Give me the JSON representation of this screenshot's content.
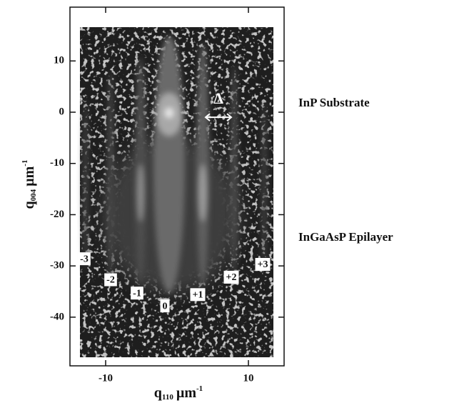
{
  "chart_data": {
    "type": "reciprocal_space_map",
    "xlim": [
      -15,
      15
    ],
    "ylim": [
      -49.5,
      20.5
    ],
    "xticks": [
      -10,
      10
    ],
    "yticks": [
      10,
      0,
      -10,
      -20,
      -30,
      -40
    ],
    "x_label": {
      "symbol": "q",
      "subscript": "110",
      "unit": "µm",
      "superscript": "-1"
    },
    "y_label": {
      "symbol": "q",
      "subscript": "004",
      "unit": "µm",
      "superscript": "-1"
    },
    "annotations": [
      {
        "text": "-3",
        "x": -13,
        "y": -28.6
      },
      {
        "text": "-2",
        "x": -9.3,
        "y": -32.7
      },
      {
        "text": "-1",
        "x": -5.6,
        "y": -35.3
      },
      {
        "text": "0",
        "x": -1.7,
        "y": -37.8
      },
      {
        "text": "+1",
        "x": 2.9,
        "y": -35.6
      },
      {
        "text": "+2",
        "x": 7.6,
        "y": -32.2
      },
      {
        "text": "+3",
        "x": 12,
        "y": -29.7
      }
    ],
    "delta_label": {
      "text": "Δ",
      "x": 5.8,
      "y": 1.8
    },
    "side_labels": [
      "InP Substrate",
      "InGaAsP Epilayer"
    ]
  }
}
